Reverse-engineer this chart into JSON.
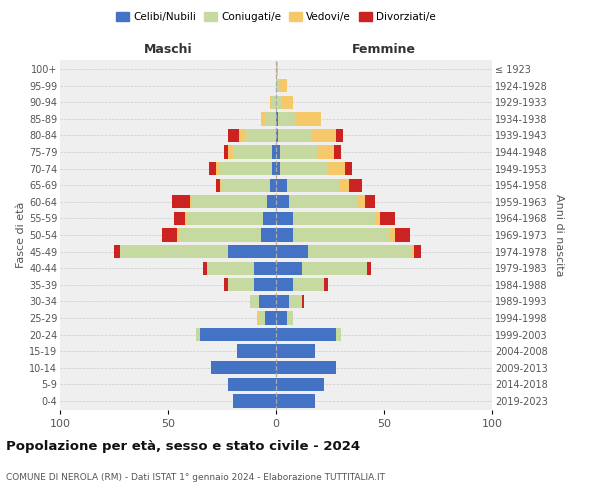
{
  "age_groups": [
    "0-4",
    "5-9",
    "10-14",
    "15-19",
    "20-24",
    "25-29",
    "30-34",
    "35-39",
    "40-44",
    "45-49",
    "50-54",
    "55-59",
    "60-64",
    "65-69",
    "70-74",
    "75-79",
    "80-84",
    "85-89",
    "90-94",
    "95-99",
    "100+"
  ],
  "birth_years": [
    "2019-2023",
    "2014-2018",
    "2009-2013",
    "2004-2008",
    "1999-2003",
    "1994-1998",
    "1989-1993",
    "1984-1988",
    "1979-1983",
    "1974-1978",
    "1969-1973",
    "1964-1968",
    "1959-1963",
    "1954-1958",
    "1949-1953",
    "1944-1948",
    "1939-1943",
    "1934-1938",
    "1929-1933",
    "1924-1928",
    "≤ 1923"
  ],
  "colors": {
    "celibi": "#4472C4",
    "coniugati": "#c5d9a0",
    "vedovi": "#f5c869",
    "divorziati": "#cc2222"
  },
  "maschi": {
    "celibi": [
      20,
      22,
      30,
      18,
      35,
      5,
      8,
      10,
      10,
      22,
      7,
      6,
      4,
      3,
      2,
      2,
      0,
      0,
      0,
      0,
      0
    ],
    "coniugati": [
      0,
      0,
      0,
      0,
      2,
      3,
      4,
      12,
      22,
      50,
      38,
      35,
      35,
      22,
      24,
      18,
      14,
      5,
      2,
      0,
      0
    ],
    "vedovi": [
      0,
      0,
      0,
      0,
      0,
      1,
      0,
      0,
      0,
      0,
      1,
      1,
      1,
      1,
      2,
      2,
      3,
      2,
      1,
      0,
      0
    ],
    "divorziati": [
      0,
      0,
      0,
      0,
      0,
      0,
      0,
      2,
      2,
      3,
      7,
      5,
      8,
      2,
      3,
      2,
      5,
      0,
      0,
      0,
      0
    ]
  },
  "femmine": {
    "celibi": [
      18,
      22,
      28,
      18,
      28,
      5,
      6,
      8,
      12,
      15,
      8,
      8,
      6,
      5,
      2,
      2,
      1,
      1,
      0,
      0,
      0
    ],
    "coniugati": [
      0,
      0,
      0,
      0,
      2,
      3,
      6,
      14,
      30,
      48,
      45,
      38,
      32,
      24,
      22,
      17,
      15,
      8,
      3,
      2,
      0
    ],
    "vedovi": [
      0,
      0,
      0,
      0,
      0,
      0,
      0,
      0,
      0,
      1,
      2,
      2,
      3,
      5,
      8,
      8,
      12,
      12,
      5,
      3,
      1
    ],
    "divorziati": [
      0,
      0,
      0,
      0,
      0,
      0,
      1,
      2,
      2,
      3,
      7,
      7,
      5,
      6,
      3,
      3,
      3,
      0,
      0,
      0,
      0
    ]
  },
  "title": "Popolazione per età, sesso e stato civile - 2024",
  "subtitle": "COMUNE DI NEROLA (RM) - Dati ISTAT 1° gennaio 2024 - Elaborazione TUTTITALIA.IT",
  "xlabel_left": "Maschi",
  "xlabel_right": "Femmine",
  "ylabel_left": "Fasce di età",
  "ylabel_right": "Anni di nascita",
  "xlim": 100,
  "legend_labels": [
    "Celibi/Nubili",
    "Coniugati/e",
    "Vedovi/e",
    "Divorziati/e"
  ],
  "background_color": "#ffffff",
  "grid_color": "#cccccc"
}
